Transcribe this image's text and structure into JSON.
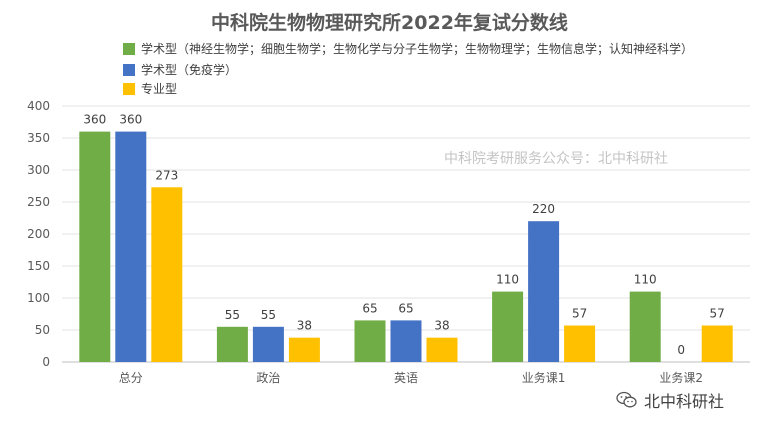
{
  "chart_data": {
    "type": "bar",
    "title": "中科院生物物理研究所2022年复试分数线",
    "categories": [
      "总分",
      "政治",
      "英语",
      "业务课1",
      "业务课2"
    ],
    "series": [
      {
        "name": "学术型（神经生物学；细胞生物学；生物化学与分子生物学；生物物理学；生物信息学；认知神经科学）",
        "color": "#70ad47",
        "values": [
          360,
          55,
          65,
          110,
          110
        ]
      },
      {
        "name": "学术型（免疫学）",
        "color": "#4472c4",
        "values": [
          360,
          55,
          65,
          220,
          0
        ]
      },
      {
        "name": "专业型",
        "color": "#ffc000",
        "values": [
          273,
          38,
          38,
          57,
          57
        ]
      }
    ],
    "yticks": [
      0,
      50,
      100,
      150,
      200,
      250,
      300,
      350,
      400
    ],
    "ylim": [
      0,
      400
    ],
    "grid": true,
    "legend_position": "top",
    "xlabel": "",
    "ylabel": ""
  },
  "watermark": "中科院考研服务公众号：北中科研社",
  "footer": {
    "account": "北中科研社",
    "icon": "wechat-icon"
  }
}
